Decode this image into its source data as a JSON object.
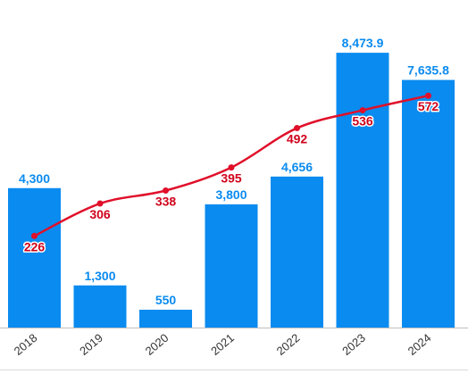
{
  "header": {
    "caption": ""
  },
  "colors": {
    "bar": "#0a8bf0",
    "line": "#e0102a",
    "bar_label": "#0a8bf0",
    "line_label": "#d0021b",
    "axis_text": "#333333"
  },
  "chart_data": {
    "type": "bar",
    "categories": [
      "2018",
      "2019",
      "2020",
      "2021",
      "2022",
      "2023",
      "2024"
    ],
    "series": [
      {
        "type": "bar",
        "values": [
          4300,
          1300,
          550,
          3800,
          4656,
          8473.9,
          7635.8
        ],
        "labels": [
          "4,300",
          "1,300",
          "550",
          "3,800",
          "4,656",
          "8,473.9",
          "7,635.8"
        ]
      },
      {
        "type": "line",
        "values": [
          226,
          306,
          338,
          395,
          492,
          536,
          572
        ],
        "labels": [
          "226",
          "306",
          "338",
          "395",
          "492",
          "536",
          "572"
        ]
      }
    ],
    "title": "",
    "xlabel": "",
    "ylabel": "",
    "ylim": [
      0,
      9000
    ],
    "ylim_secondary": [
      0,
      720
    ],
    "grid": false,
    "legend": "none"
  }
}
